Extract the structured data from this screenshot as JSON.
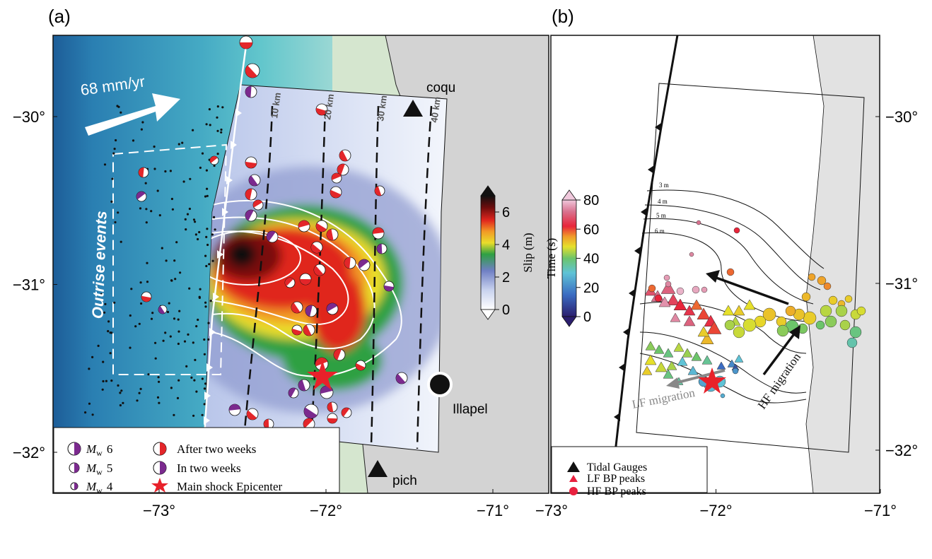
{
  "panel_a": {
    "label": "(a)",
    "xticks": [
      {
        "value": -73,
        "label": "−73°"
      },
      {
        "value": -72,
        "label": "−72°"
      },
      {
        "value": -71,
        "label": "−71°"
      }
    ],
    "yticks": [
      {
        "value": -30,
        "label": "−30°"
      },
      {
        "value": -31,
        "label": "−31°"
      },
      {
        "value": -32,
        "label": "−32°"
      }
    ],
    "plate_rate": "68 mm/yr",
    "outrise_label": "Outrise events",
    "depth_labels": [
      "10 km",
      "20 km",
      "30 km",
      "40 km"
    ],
    "stations": [
      "coqu",
      "pich"
    ],
    "town": "Illapel",
    "colorbar": {
      "title": "Slip (m)",
      "range": [
        0,
        7
      ],
      "ticks": [
        0,
        2,
        4,
        6
      ]
    },
    "legend": {
      "magnitudes": [
        {
          "m": "M",
          "sub": "w",
          "mag": 6
        },
        {
          "m": "M",
          "sub": "w",
          "mag": 5
        },
        {
          "m": "M",
          "sub": "w",
          "mag": 4
        }
      ],
      "after": "After two weeks",
      "within": "In two weeks",
      "epicenter": "Main shock Epicenter"
    }
  },
  "panel_b": {
    "label": "(b)",
    "xticks": [
      {
        "value": -73,
        "label": "−73°"
      },
      {
        "value": -72,
        "label": "−72°"
      },
      {
        "value": -71,
        "label": "−71°"
      }
    ],
    "yticks": [
      {
        "value": -30,
        "label": "−30°"
      },
      {
        "value": -31,
        "label": "−31°"
      },
      {
        "value": -32,
        "label": "−32°"
      }
    ],
    "colorbar": {
      "title": "Time (s)",
      "range": [
        0,
        80
      ],
      "ticks": [
        0,
        20,
        40,
        60,
        80
      ]
    },
    "contour_labels": [
      "3 m",
      "4 m",
      "5 m",
      "6 m"
    ],
    "lf_arrow": "LF migration",
    "hf_arrow": "HF migration",
    "legend": [
      "Tidal Gauges",
      "LF BP peaks",
      "HF BP peaks"
    ]
  }
}
